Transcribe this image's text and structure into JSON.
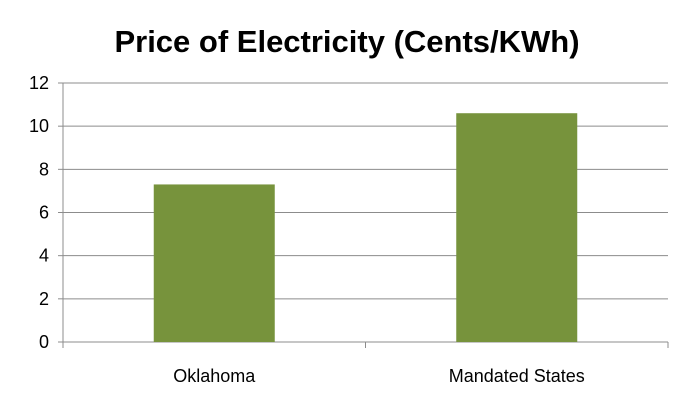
{
  "chart_data": {
    "type": "bar",
    "title": "Price of Electricity (Cents/KWh)",
    "categories": [
      "Oklahoma",
      "Mandated States"
    ],
    "values": [
      7.3,
      10.6
    ],
    "ylim": [
      0,
      12
    ],
    "yticks": [
      "0",
      "2",
      "4",
      "6",
      "8",
      "10",
      "12"
    ],
    "xlabel": "",
    "ylabel": "",
    "grid": true,
    "legend": "none",
    "bar_color": "#77933c",
    "grid_color": "#8c8c8c"
  }
}
